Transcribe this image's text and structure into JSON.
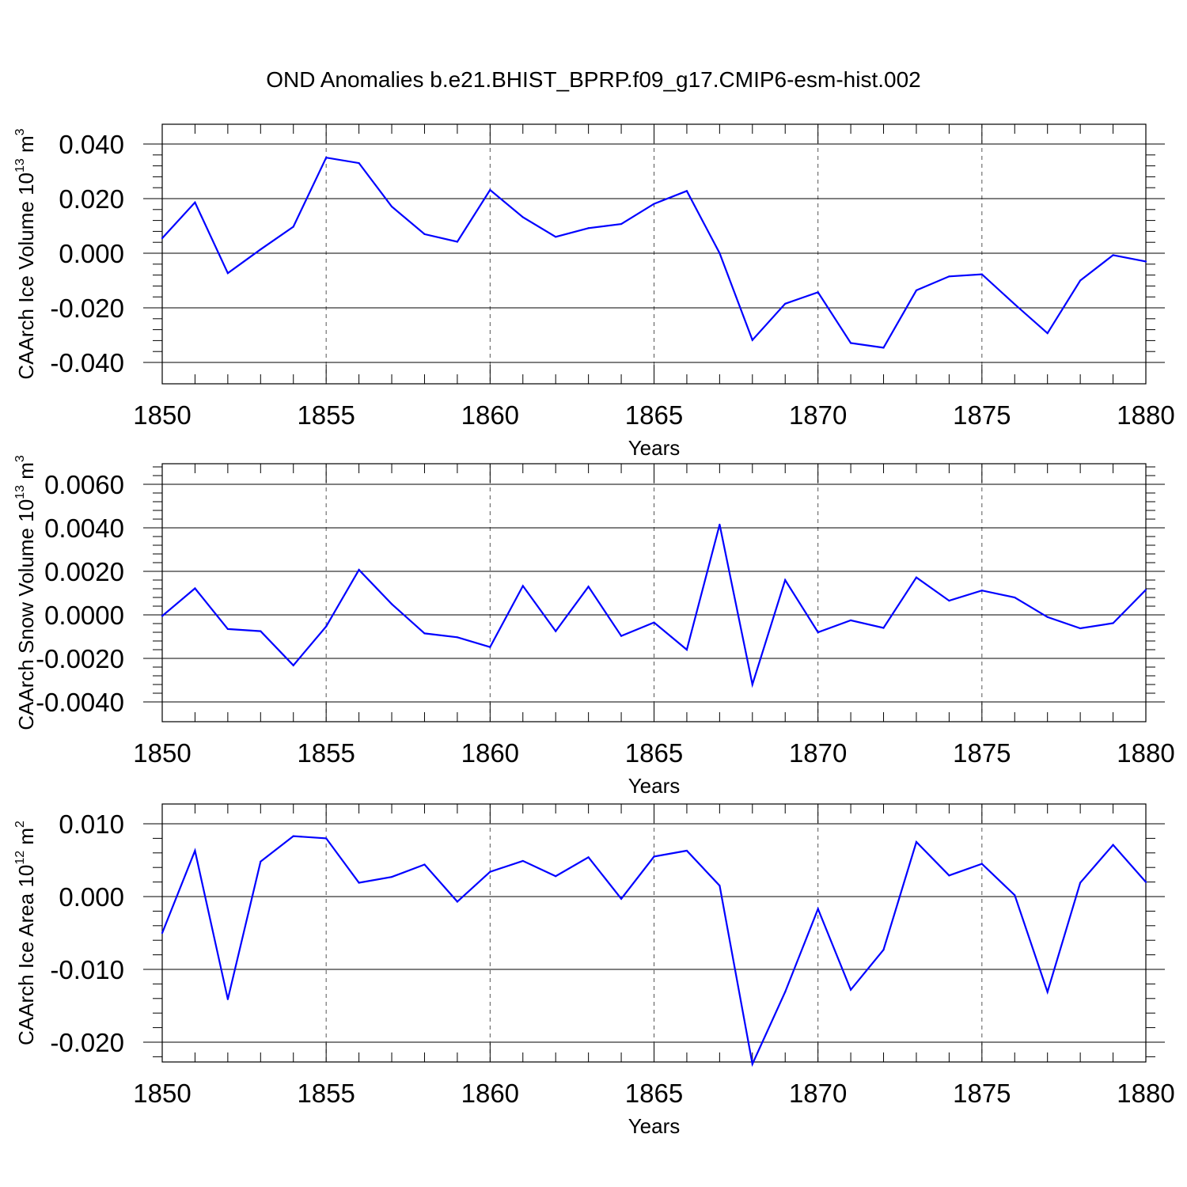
{
  "title": "OND Anomalies b.e21.BHIST_BPRP.f09_g17.CMIP6-esm-hist.002",
  "colors": {
    "line": "#0000ff",
    "axis": "#000000",
    "grid": "#555555"
  },
  "chart_data": [
    {
      "type": "line",
      "xlabel": "Years",
      "ylabel": {
        "text": "CAArch Ice Volume 10",
        "sup": "13",
        "unit": " m",
        "unit_sup": "3"
      },
      "xlim": [
        1850,
        1880
      ],
      "ylim": [
        -0.04,
        0.04
      ],
      "x_ticks": [
        "1850",
        "1855",
        "1860",
        "1865",
        "1870",
        "1875",
        "1880"
      ],
      "y_ticks": [
        {
          "v": 0.04,
          "label": "0.040"
        },
        {
          "v": 0.02,
          "label": "0.020"
        },
        {
          "v": 0.0,
          "label": "0.000"
        },
        {
          "v": -0.02,
          "label": "-0.020"
        },
        {
          "v": -0.04,
          "label": "-0.040"
        }
      ],
      "x_gridlines": [
        1855,
        1860,
        1865,
        1870,
        1875
      ],
      "x": [
        1850,
        1851,
        1852,
        1853,
        1854,
        1855,
        1856,
        1857,
        1858,
        1859,
        1860,
        1861,
        1862,
        1863,
        1864,
        1865,
        1866,
        1867,
        1868,
        1869,
        1870,
        1871,
        1872,
        1873,
        1874,
        1875,
        1876,
        1877,
        1878,
        1879,
        1880
      ],
      "values": [
        0.0055,
        0.0186,
        -0.0073,
        0.0014,
        0.0097,
        0.035,
        0.033,
        0.0171,
        0.007,
        0.0042,
        0.0232,
        0.0132,
        0.006,
        0.0092,
        0.0107,
        0.0181,
        0.0228,
        0.0,
        -0.0318,
        -0.0185,
        -0.0143,
        -0.0329,
        -0.0346,
        -0.0136,
        -0.0085,
        -0.0077,
        -0.0187,
        -0.0293,
        -0.01,
        -0.0007,
        -0.003
      ]
    },
    {
      "type": "line",
      "xlabel": "Years",
      "ylabel": {
        "text": "CAArch Snow Volume 10",
        "sup": "13",
        "unit": " m",
        "unit_sup": "3"
      },
      "xlim": [
        1850,
        1880
      ],
      "ylim": [
        -0.004,
        0.007
      ],
      "x_ticks": [
        "1850",
        "1855",
        "1860",
        "1865",
        "1870",
        "1875",
        "1880"
      ],
      "y_ticks": [
        {
          "v": 0.006,
          "label": "0.0060"
        },
        {
          "v": 0.004,
          "label": "0.0040"
        },
        {
          "v": 0.002,
          "label": "0.0020"
        },
        {
          "v": 0.0,
          "label": "0.0000"
        },
        {
          "v": -0.002,
          "label": "-0.0020"
        },
        {
          "v": -0.004,
          "label": "-0.0040"
        }
      ],
      "x_gridlines": [
        1855,
        1860,
        1865,
        1870,
        1875
      ],
      "x": [
        1850,
        1851,
        1852,
        1853,
        1854,
        1855,
        1856,
        1857,
        1858,
        1859,
        1860,
        1861,
        1862,
        1863,
        1864,
        1865,
        1866,
        1867,
        1868,
        1869,
        1870,
        1871,
        1872,
        1873,
        1874,
        1875,
        1876,
        1877,
        1878,
        1879,
        1880
      ],
      "values": [
        -5e-05,
        0.00122,
        -0.00065,
        -0.00075,
        -0.00232,
        -0.00053,
        0.00207,
        0.0005,
        -0.00085,
        -0.00103,
        -0.00148,
        0.00133,
        -0.00075,
        0.0013,
        -0.00097,
        -0.00035,
        -0.0016,
        0.00415,
        -0.0032,
        0.0016,
        -0.0008,
        -0.00025,
        -0.0006,
        0.00172,
        0.00065,
        0.00112,
        0.0008,
        -0.0001,
        -0.00062,
        -0.00038,
        0.00115
      ]
    },
    {
      "type": "line",
      "xlabel": "Years",
      "ylabel": {
        "text": "CAArch Ice Area 10",
        "sup": "12",
        "unit": " m",
        "unit_sup": "2"
      },
      "xlim": [
        1850,
        1880
      ],
      "ylim": [
        -0.025,
        0.01
      ],
      "x_ticks": [
        "1850",
        "1855",
        "1860",
        "1865",
        "1870",
        "1875",
        "1880"
      ],
      "y_ticks": [
        {
          "v": 0.01,
          "label": "0.010"
        },
        {
          "v": 0.0,
          "label": "0.000"
        },
        {
          "v": -0.01,
          "label": "-0.010"
        },
        {
          "v": -0.02,
          "label": "-0.020"
        }
      ],
      "x_gridlines": [
        1855,
        1860,
        1865,
        1870,
        1875
      ],
      "x": [
        1850,
        1851,
        1852,
        1853,
        1854,
        1855,
        1856,
        1857,
        1858,
        1859,
        1860,
        1861,
        1862,
        1863,
        1864,
        1865,
        1866,
        1867,
        1868,
        1869,
        1870,
        1871,
        1872,
        1873,
        1874,
        1875,
        1876,
        1877,
        1878,
        1879,
        1880
      ],
      "values": [
        -0.005,
        0.0063,
        -0.0141,
        0.0048,
        0.0083,
        0.008,
        0.0019,
        0.0027,
        0.0044,
        -0.0007,
        0.0034,
        0.0049,
        0.0028,
        0.0054,
        -0.0003,
        0.0055,
        0.0063,
        0.0015,
        -0.023,
        -0.0131,
        -0.0017,
        -0.0128,
        -0.0073,
        0.0075,
        0.0029,
        0.0045,
        0.0002,
        -0.0131,
        0.0019,
        0.0071,
        0.002
      ]
    }
  ]
}
